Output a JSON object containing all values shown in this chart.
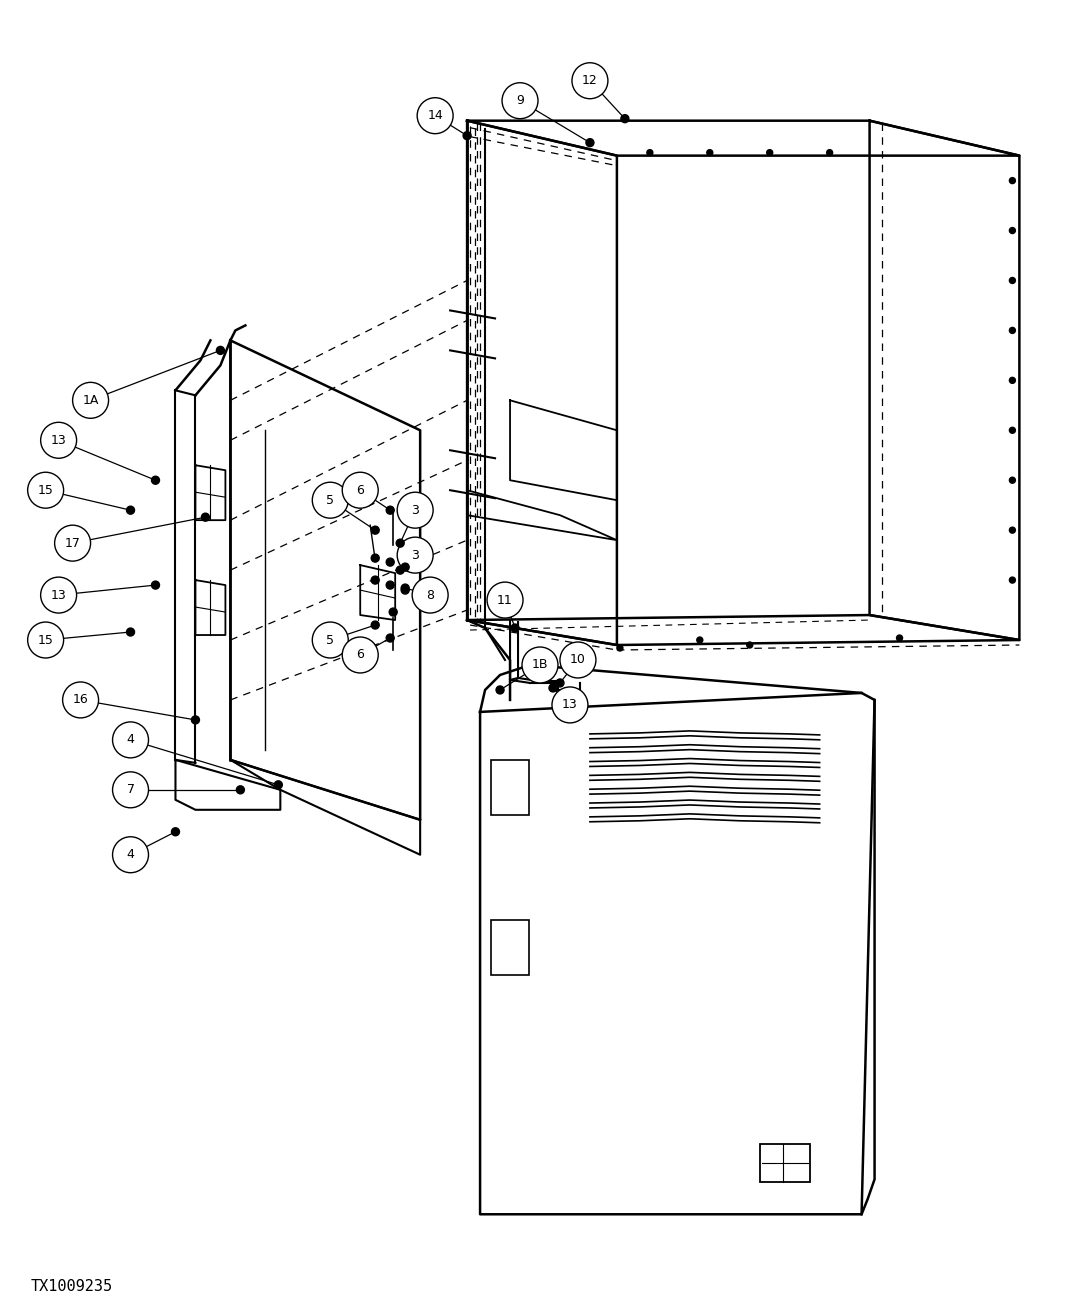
{
  "background_color": "#ffffff",
  "line_color": "#000000",
  "watermark": "TX1009235",
  "fig_width": 10.81,
  "fig_height": 13.04,
  "dpi": 100
}
